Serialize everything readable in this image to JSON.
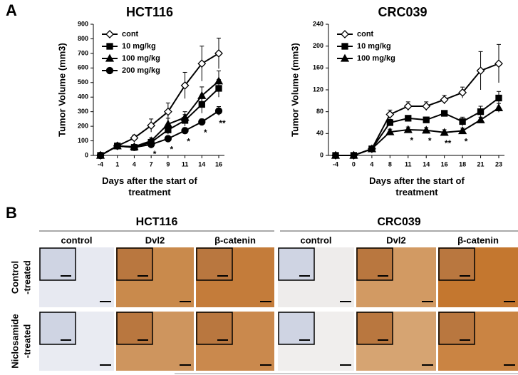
{
  "panel_labels": [
    "A",
    "B"
  ],
  "chart_data": [
    {
      "type": "line",
      "title": "HCT116",
      "x_label": "Days after the start of treatment",
      "y_label": "Tumor Volume (mm3)",
      "categories": [
        "-4",
        "1",
        "4",
        "7",
        "9",
        "11",
        "14",
        "16"
      ],
      "ylim": [
        0,
        900
      ],
      "yticks": [
        0,
        100,
        200,
        300,
        400,
        500,
        600,
        700,
        800,
        900
      ],
      "legend": "top-left",
      "series": [
        {
          "name": "cont",
          "color": "#000000",
          "marker": "diamond",
          "values": [
            0,
            65,
            120,
            205,
            300,
            480,
            630,
            700
          ],
          "errors": [
            0,
            5,
            20,
            45,
            60,
            90,
            120,
            105
          ]
        },
        {
          "name": "10 mg/kg",
          "color": "#000000",
          "marker": "square",
          "values": [
            0,
            65,
            55,
            90,
            175,
            240,
            350,
            460
          ],
          "errors": [
            0,
            5,
            10,
            15,
            30,
            40,
            60,
            60
          ]
        },
        {
          "name": "100 mg/kg",
          "color": "#000000",
          "marker": "triangle",
          "values": [
            0,
            65,
            60,
            100,
            215,
            260,
            410,
            510
          ],
          "errors": [
            0,
            5,
            10,
            20,
            40,
            40,
            60,
            70
          ]
        },
        {
          "name": "200 mg/kg",
          "color": "#000000",
          "marker": "circle",
          "values": [
            0,
            65,
            55,
            75,
            115,
            170,
            230,
            305
          ],
          "errors": [
            0,
            5,
            5,
            10,
            20,
            20,
            20,
            30
          ]
        }
      ],
      "annotations": [
        {
          "text": "*",
          "x": "7"
        },
        {
          "text": "*",
          "x": "9"
        },
        {
          "text": "*",
          "x": "11"
        },
        {
          "text": "*",
          "x": "14"
        },
        {
          "text": "**",
          "x": "16"
        }
      ]
    },
    {
      "type": "line",
      "title": "CRC039",
      "x_label": "Days after the start of treatment",
      "y_label": "Tumor Volume (mm3)",
      "categories": [
        "-4",
        "0",
        "4",
        "8",
        "11",
        "14",
        "16",
        "18",
        "21",
        "23"
      ],
      "ylim": [
        0,
        240
      ],
      "yticks": [
        0,
        40,
        80,
        120,
        160,
        200,
        240
      ],
      "legend": "top-left",
      "series": [
        {
          "name": "cont",
          "color": "#000000",
          "marker": "diamond",
          "values": [
            0,
            0,
            12,
            75,
            90,
            90,
            102,
            115,
            155,
            168
          ],
          "errors": [
            0,
            0,
            2,
            8,
            8,
            8,
            8,
            10,
            35,
            35
          ]
        },
        {
          "name": "10 mg/kg",
          "color": "#000000",
          "marker": "square",
          "values": [
            0,
            0,
            12,
            60,
            68,
            65,
            77,
            62,
            80,
            105
          ],
          "errors": [
            0,
            0,
            2,
            6,
            5,
            5,
            5,
            8,
            10,
            12
          ]
        },
        {
          "name": "100 mg/kg",
          "color": "#000000",
          "marker": "triangle",
          "values": [
            0,
            0,
            12,
            43,
            47,
            46,
            42,
            45,
            65,
            87
          ],
          "errors": [
            0,
            0,
            2,
            5,
            5,
            5,
            5,
            5,
            5,
            8
          ]
        }
      ],
      "annotations": [
        {
          "text": "*",
          "x": "11"
        },
        {
          "text": "*",
          "x": "14"
        },
        {
          "text": "**",
          "x": "16"
        },
        {
          "text": "*",
          "x": "18"
        }
      ]
    }
  ],
  "panel_b": {
    "groups": [
      {
        "name": "HCT116",
        "columns": [
          "control",
          "Dvl2",
          "β-catenin"
        ]
      },
      {
        "name": "CRC039",
        "columns": [
          "control",
          "Dvl2",
          "β-catenin"
        ]
      }
    ],
    "rows": [
      [
        "Control",
        "-treated"
      ],
      [
        "Niclosamide",
        "-treated"
      ]
    ]
  }
}
